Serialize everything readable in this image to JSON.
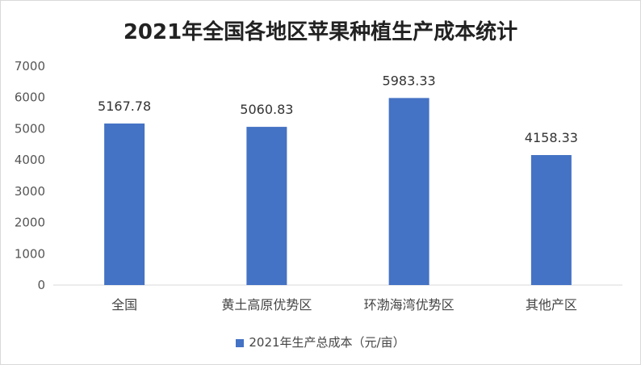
{
  "chart_data": {
    "type": "bar",
    "title": "2021年全国各地区苹果种植生产成本统计",
    "categories": [
      "全国",
      "黄土高原优势区",
      "环渤海湾优势区",
      "其他产区"
    ],
    "series": [
      {
        "name": "2021年生产总成本（元/亩）",
        "values": [
          5167.78,
          5060.83,
          5983.33,
          4158.33
        ],
        "color": "#4472C4"
      }
    ],
    "data_labels": [
      "5167.78",
      "5060.83",
      "5983.33",
      "4158.33"
    ],
    "yticks": [
      "0",
      "1000",
      "2000",
      "3000",
      "4000",
      "5000",
      "6000",
      "7000"
    ],
    "ylim": [
      0,
      7000
    ],
    "grid": false,
    "legend_position": "bottom"
  }
}
